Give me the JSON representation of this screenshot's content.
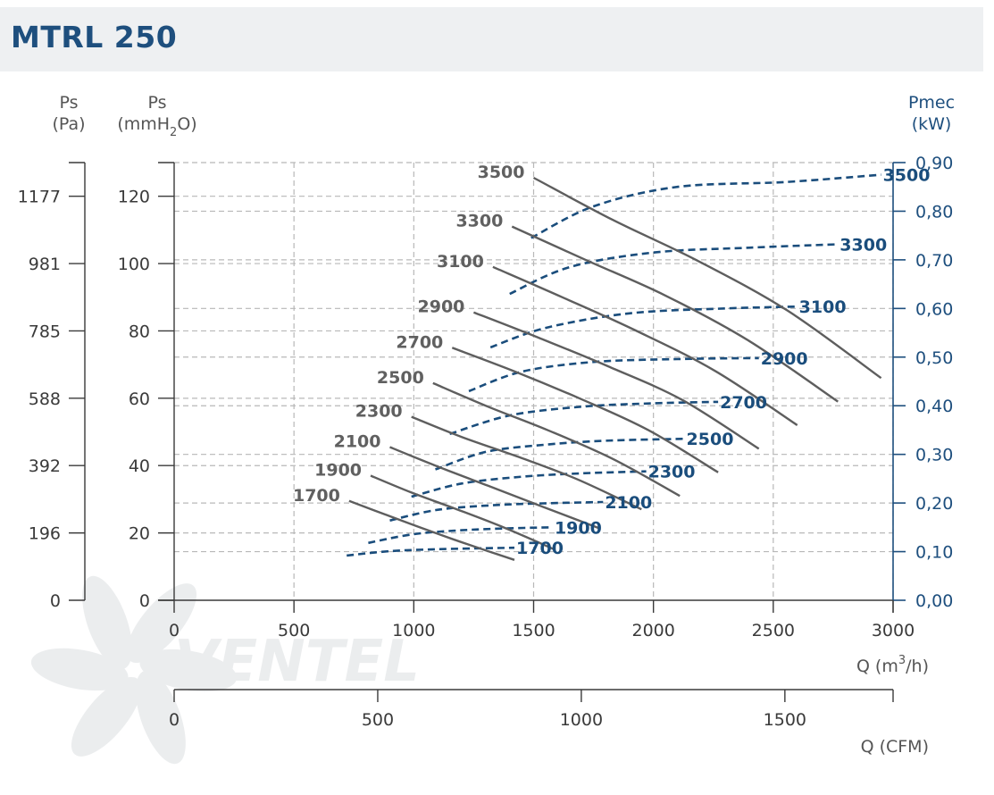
{
  "header": {
    "title": "MTRL 250"
  },
  "chart_data": {
    "type": "line",
    "title": "MTRL 250",
    "x_axis": {
      "label_prefix": "Q (m",
      "label_sup": "3",
      "label_suffix": "/h)",
      "range": [
        0,
        3000
      ],
      "ticks": [
        0,
        500,
        1000,
        1500,
        2000,
        2500,
        3000
      ]
    },
    "x2_axis": {
      "label": "Q (CFM)",
      "ticks": [
        0,
        500,
        1000,
        1500
      ]
    },
    "y_axis_mmh2o": {
      "label_line1": "Ps",
      "label_line2_prefix": "(mmH",
      "label_line2_sub": "2",
      "label_line2_suffix": "O)",
      "range": [
        0,
        130
      ],
      "ticks": [
        0,
        20,
        40,
        60,
        80,
        100,
        120
      ]
    },
    "y_axis_pa": {
      "label_line1": "Ps",
      "label_line2": "(Pa)",
      "ticks": [
        [
          "0",
          0
        ],
        [
          "196",
          20
        ],
        [
          "392",
          40
        ],
        [
          "588",
          60
        ],
        [
          "785",
          80
        ],
        [
          "981",
          100
        ],
        [
          "1177",
          120
        ]
      ]
    },
    "y2_axis_kw": {
      "label_line1": "Pmec",
      "label_line2": "(kW)",
      "range": [
        0,
        0.9
      ],
      "ticks": [
        "0,00",
        "0,10",
        "0,20",
        "0,30",
        "0,40",
        "0,50",
        "0,60",
        "0,70",
        "0,80",
        "0,90"
      ]
    },
    "grid": true,
    "pressure_series": [
      {
        "rpm": "1700",
        "points": [
          [
            730,
            29.5
          ],
          [
            880,
            25.5
          ],
          [
            1050,
            21
          ],
          [
            1230,
            16.5
          ],
          [
            1420,
            12
          ]
        ]
      },
      {
        "rpm": "1900",
        "points": [
          [
            820,
            37
          ],
          [
            990,
            32
          ],
          [
            1180,
            27
          ],
          [
            1380,
            21.5
          ],
          [
            1590,
            15
          ]
        ]
      },
      {
        "rpm": "2100",
        "points": [
          [
            900,
            45.5
          ],
          [
            1090,
            40
          ],
          [
            1310,
            34
          ],
          [
            1530,
            28
          ],
          [
            1770,
            21.5
          ]
        ]
      },
      {
        "rpm": "2300",
        "points": [
          [
            990,
            54.5
          ],
          [
            1200,
            48.5
          ],
          [
            1440,
            42.5
          ],
          [
            1680,
            36
          ],
          [
            1950,
            27
          ]
        ]
      },
      {
        "rpm": "2500",
        "points": [
          [
            1080,
            64.5
          ],
          [
            1310,
            57.5
          ],
          [
            1560,
            50.5
          ],
          [
            1830,
            42
          ],
          [
            2110,
            31
          ]
        ]
      },
      {
        "rpm": "2700",
        "points": [
          [
            1160,
            75
          ],
          [
            1420,
            68
          ],
          [
            1690,
            60
          ],
          [
            1980,
            50.5
          ],
          [
            2270,
            38
          ]
        ]
      },
      {
        "rpm": "2900",
        "points": [
          [
            1250,
            85.5
          ],
          [
            1520,
            78
          ],
          [
            1810,
            69.5
          ],
          [
            2120,
            59.5
          ],
          [
            2440,
            45
          ]
        ]
      },
      {
        "rpm": "3100",
        "points": [
          [
            1330,
            99
          ],
          [
            1620,
            90
          ],
          [
            1930,
            80
          ],
          [
            2260,
            68
          ],
          [
            2600,
            52
          ]
        ]
      },
      {
        "rpm": "3300",
        "points": [
          [
            1410,
            111
          ],
          [
            1720,
            101
          ],
          [
            2050,
            90.5
          ],
          [
            2400,
            77
          ],
          [
            2770,
            59
          ]
        ]
      },
      {
        "rpm": "3500",
        "points": [
          [
            1500,
            125.5
          ],
          [
            1830,
            113
          ],
          [
            2180,
            101
          ],
          [
            2560,
            86
          ],
          [
            2950,
            66
          ]
        ]
      }
    ],
    "power_series": [
      {
        "rpm": "1700",
        "points": [
          [
            720,
            0.092
          ],
          [
            900,
            0.101
          ],
          [
            1100,
            0.105
          ],
          [
            1300,
            0.107
          ],
          [
            1420,
            0.108
          ]
        ]
      },
      {
        "rpm": "1900",
        "points": [
          [
            810,
            0.118
          ],
          [
            1000,
            0.136
          ],
          [
            1200,
            0.144
          ],
          [
            1400,
            0.148
          ],
          [
            1580,
            0.15
          ]
        ]
      },
      {
        "rpm": "2100",
        "points": [
          [
            900,
            0.164
          ],
          [
            1100,
            0.186
          ],
          [
            1350,
            0.196
          ],
          [
            1600,
            0.2
          ],
          [
            1790,
            0.202
          ]
        ]
      },
      {
        "rpm": "2300",
        "points": [
          [
            990,
            0.213
          ],
          [
            1200,
            0.24
          ],
          [
            1450,
            0.254
          ],
          [
            1700,
            0.261
          ],
          [
            1970,
            0.265
          ]
        ]
      },
      {
        "rpm": "2500",
        "points": [
          [
            1090,
            0.269
          ],
          [
            1300,
            0.305
          ],
          [
            1550,
            0.32
          ],
          [
            1800,
            0.328
          ],
          [
            2130,
            0.332
          ]
        ]
      },
      {
        "rpm": "2700",
        "points": [
          [
            1150,
            0.342
          ],
          [
            1400,
            0.38
          ],
          [
            1700,
            0.398
          ],
          [
            2000,
            0.405
          ],
          [
            2270,
            0.408
          ]
        ]
      },
      {
        "rpm": "2900",
        "points": [
          [
            1230,
            0.43
          ],
          [
            1450,
            0.47
          ],
          [
            1750,
            0.49
          ],
          [
            2100,
            0.496
          ],
          [
            2440,
            0.498
          ]
        ]
      },
      {
        "rpm": "3100",
        "points": [
          [
            1320,
            0.52
          ],
          [
            1550,
            0.56
          ],
          [
            1900,
            0.59
          ],
          [
            2300,
            0.6
          ],
          [
            2600,
            0.604
          ]
        ]
      },
      {
        "rpm": "3300",
        "points": [
          [
            1400,
            0.63
          ],
          [
            1650,
            0.685
          ],
          [
            2000,
            0.715
          ],
          [
            2400,
            0.725
          ],
          [
            2770,
            0.732
          ]
        ]
      },
      {
        "rpm": "3500",
        "points": [
          [
            1490,
            0.745
          ],
          [
            1750,
            0.81
          ],
          [
            2100,
            0.85
          ],
          [
            2550,
            0.86
          ],
          [
            2950,
            0.875
          ]
        ]
      }
    ]
  },
  "watermark": {
    "text": "VENTEL"
  }
}
